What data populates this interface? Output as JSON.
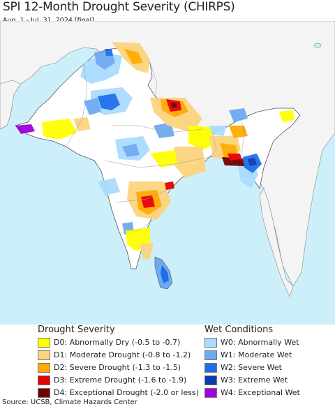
{
  "header": {
    "title": "SPI 12-Month Drought Severity (CHIRPS)",
    "subtitle": "Aug. 1 - Jul. 31, 2024 [final]"
  },
  "legend": {
    "drought_heading": "Drought Severity",
    "wet_heading": "Wet Conditions",
    "drought": [
      {
        "label": "D0: Abnormally Dry (-0.5 to -0.7)",
        "color": "#ffff00"
      },
      {
        "label": "D1: Moderate Drought (-0.8 to -1.2)",
        "color": "#fcd37f"
      },
      {
        "label": "D2: Severe Drought (-1.3 to -1.5)",
        "color": "#ffaa00"
      },
      {
        "label": "D3: Extreme Drought (-1.6 to -1.9)",
        "color": "#e60000"
      },
      {
        "label": "D4: Exceptional Drought (-2.0 or less)",
        "color": "#730000"
      }
    ],
    "wet": [
      {
        "label": "W0: Abnormally Wet",
        "color": "#aadcff"
      },
      {
        "label": "W1: Moderate Wet",
        "color": "#6eaaf0"
      },
      {
        "label": "W2: Severe Wet",
        "color": "#1e6eeb"
      },
      {
        "label": "W3: Extreme Wet",
        "color": "#0a3cb4"
      },
      {
        "label": "W4: Exceptional Wet",
        "color": "#a000dc"
      }
    ]
  },
  "footer": {
    "source": "Source: UCSB, Climate Hazards Center"
  },
  "colors": {
    "ocean": "#cdeff9",
    "land": "#ffffff",
    "outside_land": "#f4f4f4",
    "border": "#555555"
  }
}
